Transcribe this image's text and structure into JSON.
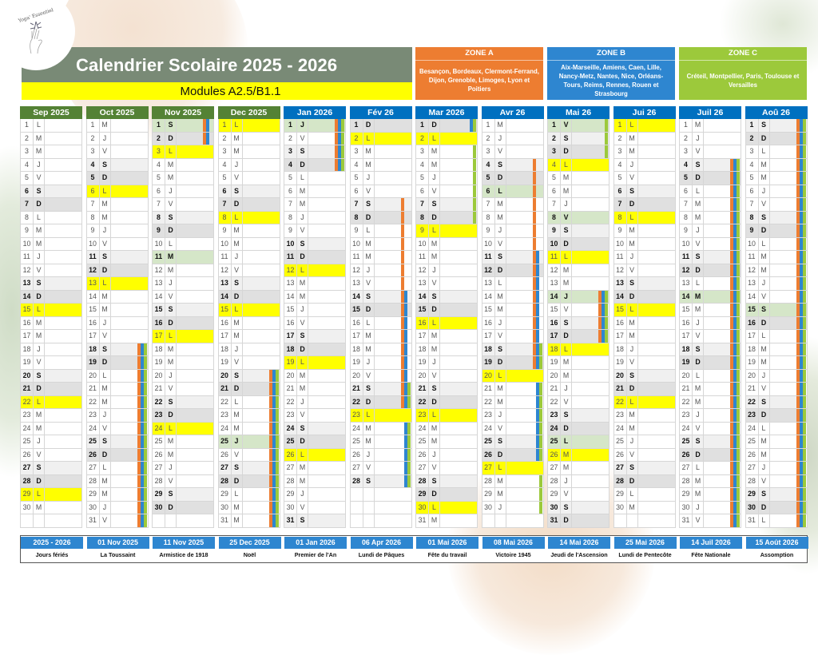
{
  "logo": {
    "text": "Yoga' Essentiel"
  },
  "header": {
    "title": "Calendrier Scolaire 2025 - 2026",
    "subtitle": "Modules A2.5/B1.1"
  },
  "colors": {
    "title_band": "#798a76",
    "subtitle_band": "#ffff00",
    "month_header_2025": "#548235",
    "month_header_2026": "#0070c0",
    "weekday_bg": "#ffffff",
    "saturday_bg": "#f0f0f0",
    "sunday_bg": "#e0e0e0",
    "holiday_bg": "#d5e6c8",
    "module_day_bg": "#ffff00",
    "zone_A": "#ed7d31",
    "zone_B": "#2e86d0",
    "zone_C": "#9cc93b"
  },
  "zones": [
    {
      "id": "A",
      "title": "ZONE A",
      "color": "#ed7d31",
      "cities": "Besançon, Bordeaux, Clermont-Ferrand, Dijon, Grenoble, Limoges, Lyon et Poitiers"
    },
    {
      "id": "B",
      "title": "ZONE B",
      "color": "#2e86d0",
      "cities": "Aix-Marseille, Amiens, Caen, Lille, Nancy-Metz, Nantes, Nice, Orléans-Tours, Reims, Rennes, Rouen et Strasbourg"
    },
    {
      "id": "C",
      "title": "ZONE C",
      "color": "#9cc93b",
      "cities": "Créteil, Montpellier, Paris, Toulouse et Versailles"
    }
  ],
  "calendar": {
    "rows_per_month": 31,
    "months": [
      {
        "label": "Sep 2025",
        "header_color": "#548235",
        "days": [
          "L",
          "M",
          "M",
          "J",
          "V",
          "S",
          "D",
          "L",
          "M",
          "M",
          "J",
          "V",
          "S",
          "D",
          "L",
          "M",
          "M",
          "J",
          "V",
          "S",
          "D",
          "L",
          "M",
          "M",
          "J",
          "V",
          "S",
          "D",
          "L",
          "M"
        ],
        "yellow": [
          15,
          22,
          29
        ],
        "holidays": [],
        "stripes": {}
      },
      {
        "label": "Oct 2025",
        "header_color": "#548235",
        "days": [
          "M",
          "J",
          "V",
          "S",
          "D",
          "L",
          "M",
          "M",
          "J",
          "V",
          "S",
          "D",
          "L",
          "M",
          "M",
          "J",
          "V",
          "S",
          "D",
          "L",
          "M",
          "M",
          "J",
          "V",
          "S",
          "D",
          "L",
          "M",
          "M",
          "J",
          "V"
        ],
        "yellow": [
          6,
          13
        ],
        "holidays": [],
        "stripes": {
          "A": [
            [
              18,
              31
            ]
          ],
          "B": [
            [
              18,
              31
            ]
          ],
          "C": [
            [
              18,
              31
            ]
          ]
        }
      },
      {
        "label": "Nov 2025",
        "header_color": "#548235",
        "days": [
          "S",
          "D",
          "L",
          "M",
          "M",
          "J",
          "V",
          "S",
          "D",
          "L",
          "M",
          "M",
          "J",
          "V",
          "S",
          "D",
          "L",
          "M",
          "M",
          "J",
          "V",
          "S",
          "D",
          "L",
          "M",
          "M",
          "J",
          "V",
          "S",
          "D"
        ],
        "yellow": [
          3,
          17,
          24
        ],
        "holidays": [
          1,
          11
        ],
        "stripes": {
          "A": [
            [
              1,
              2
            ]
          ],
          "B": [
            [
              1,
              2
            ]
          ]
        }
      },
      {
        "label": "Dec 2025",
        "header_color": "#548235",
        "days": [
          "L",
          "M",
          "M",
          "J",
          "V",
          "S",
          "D",
          "L",
          "M",
          "M",
          "J",
          "V",
          "S",
          "D",
          "L",
          "M",
          "M",
          "J",
          "V",
          "S",
          "D",
          "L",
          "M",
          "M",
          "J",
          "V",
          "S",
          "D",
          "L",
          "M",
          "M"
        ],
        "yellow": [
          1,
          8,
          15
        ],
        "holidays": [
          25
        ],
        "stripes": {
          "A": [
            [
              20,
              31
            ]
          ],
          "B": [
            [
              20,
              31
            ]
          ],
          "C": [
            [
              20,
              31
            ]
          ]
        }
      },
      {
        "label": "Jan 2026",
        "header_color": "#0070c0",
        "days": [
          "J",
          "V",
          "S",
          "D",
          "L",
          "M",
          "M",
          "J",
          "V",
          "S",
          "D",
          "L",
          "M",
          "M",
          "J",
          "V",
          "S",
          "D",
          "L",
          "M",
          "M",
          "J",
          "V",
          "S",
          "D",
          "L",
          "M",
          "M",
          "J",
          "V",
          "S"
        ],
        "yellow": [
          12,
          19,
          26
        ],
        "holidays": [
          1
        ],
        "stripes": {
          "A": [
            [
              1,
              4
            ]
          ],
          "B": [
            [
              1,
              4
            ]
          ],
          "C": [
            [
              1,
              4
            ]
          ]
        }
      },
      {
        "label": "Fév 26",
        "header_color": "#0070c0",
        "days": [
          "D",
          "L",
          "M",
          "M",
          "J",
          "V",
          "S",
          "D",
          "L",
          "M",
          "M",
          "J",
          "V",
          "S",
          "D",
          "L",
          "M",
          "M",
          "J",
          "V",
          "S",
          "D",
          "L",
          "M",
          "M",
          "J",
          "V",
          "S"
        ],
        "yellow": [
          2,
          23
        ],
        "holidays": [],
        "stripes": {
          "A": [
            [
              7,
              22
            ]
          ],
          "B": [
            [
              14,
              28
            ]
          ],
          "C": [
            [
              21,
              28
            ]
          ]
        }
      },
      {
        "label": "Mar 2026",
        "header_color": "#0070c0",
        "days": [
          "D",
          "L",
          "M",
          "M",
          "J",
          "V",
          "S",
          "D",
          "L",
          "M",
          "M",
          "J",
          "V",
          "S",
          "D",
          "L",
          "M",
          "M",
          "J",
          "V",
          "S",
          "D",
          "L",
          "M",
          "M",
          "J",
          "V",
          "S",
          "D",
          "L",
          "M"
        ],
        "yellow": [
          2,
          9,
          16,
          23,
          30
        ],
        "holidays": [],
        "stripes": {
          "B": [
            [
              1,
              1
            ]
          ],
          "C": [
            [
              1,
              8
            ]
          ]
        }
      },
      {
        "label": "Avr 26",
        "header_color": "#0070c0",
        "days": [
          "M",
          "J",
          "V",
          "S",
          "D",
          "L",
          "M",
          "M",
          "J",
          "V",
          "S",
          "D",
          "L",
          "M",
          "M",
          "J",
          "V",
          "S",
          "D",
          "L",
          "M",
          "M",
          "J",
          "V",
          "S",
          "D",
          "L",
          "M",
          "M",
          "J"
        ],
        "yellow": [
          20,
          27
        ],
        "holidays": [
          6
        ],
        "stripes": {
          "A": [
            [
              4,
              19
            ]
          ],
          "B": [
            [
              11,
              26
            ]
          ],
          "C": [
            [
              18,
              30
            ]
          ]
        }
      },
      {
        "label": "Mai 26",
        "header_color": "#0070c0",
        "days": [
          "V",
          "S",
          "D",
          "L",
          "M",
          "M",
          "J",
          "V",
          "S",
          "D",
          "L",
          "M",
          "M",
          "J",
          "V",
          "S",
          "D",
          "L",
          "M",
          "M",
          "J",
          "V",
          "S",
          "D",
          "L",
          "M",
          "M",
          "J",
          "V",
          "S",
          "D"
        ],
        "yellow": [
          4,
          11,
          18,
          26
        ],
        "holidays": [
          1,
          8,
          14,
          25
        ],
        "stripes": {
          "A": [
            [
              14,
              17
            ]
          ],
          "B": [
            [
              14,
              17
            ]
          ],
          "C": [
            [
              1,
              3
            ],
            [
              14,
              17
            ]
          ]
        }
      },
      {
        "label": "Jui 26",
        "header_color": "#0070c0",
        "days": [
          "L",
          "M",
          "M",
          "J",
          "V",
          "S",
          "D",
          "L",
          "M",
          "M",
          "J",
          "V",
          "S",
          "D",
          "L",
          "M",
          "M",
          "J",
          "V",
          "S",
          "D",
          "L",
          "M",
          "M",
          "J",
          "V",
          "S",
          "D",
          "L",
          "M"
        ],
        "yellow": [
          1,
          8,
          15,
          22
        ],
        "holidays": [],
        "stripes": {}
      },
      {
        "label": "Juil 26",
        "header_color": "#0070c0",
        "days": [
          "M",
          "J",
          "V",
          "S",
          "D",
          "L",
          "M",
          "M",
          "J",
          "V",
          "S",
          "D",
          "L",
          "M",
          "M",
          "J",
          "V",
          "S",
          "D",
          "L",
          "M",
          "M",
          "J",
          "V",
          "S",
          "D",
          "L",
          "M",
          "M",
          "J",
          "V"
        ],
        "yellow": [],
        "holidays": [
          14
        ],
        "stripes": {
          "A": [
            [
              4,
              31
            ]
          ],
          "B": [
            [
              4,
              31
            ]
          ],
          "C": [
            [
              4,
              31
            ]
          ]
        }
      },
      {
        "label": "Aoû 26",
        "header_color": "#0070c0",
        "days": [
          "S",
          "D",
          "L",
          "M",
          "M",
          "J",
          "V",
          "S",
          "D",
          "L",
          "M",
          "M",
          "J",
          "V",
          "S",
          "D",
          "L",
          "M",
          "M",
          "J",
          "V",
          "S",
          "D",
          "L",
          "M",
          "M",
          "J",
          "V",
          "S",
          "D",
          "L"
        ],
        "yellow": [],
        "holidays": [
          15
        ],
        "stripes": {
          "A": [
            [
              1,
              31
            ]
          ],
          "B": [
            [
              1,
              31
            ]
          ],
          "C": [
            [
              1,
              31
            ]
          ]
        }
      }
    ]
  },
  "footer": {
    "items": [
      {
        "date": "2025 - 2026",
        "label": "Jours fériés"
      },
      {
        "date": "01 Nov 2025",
        "label": "La Toussaint"
      },
      {
        "date": "11 Nov 2025",
        "label": "Armistice de 1918"
      },
      {
        "date": "25 Dec 2025",
        "label": "Noël"
      },
      {
        "date": "01 Jan 2026",
        "label": "Premier de l'An"
      },
      {
        "date": "06 Apr 2026",
        "label": "Lundi de Pâques"
      },
      {
        "date": "01 Mai  2026",
        "label": "Fête du travail"
      },
      {
        "date": "08 Mai  2026",
        "label": "Victoire 1945"
      },
      {
        "date": "14 Mai  2026",
        "label": "Jeudi de l'Ascension"
      },
      {
        "date": "25 Mai  2026",
        "label": "Lundi de Pentecôte"
      },
      {
        "date": "14 Juil 2026",
        "label": "Fête Nationale"
      },
      {
        "date": "15 Août 2026",
        "label": "Assomption"
      }
    ]
  }
}
